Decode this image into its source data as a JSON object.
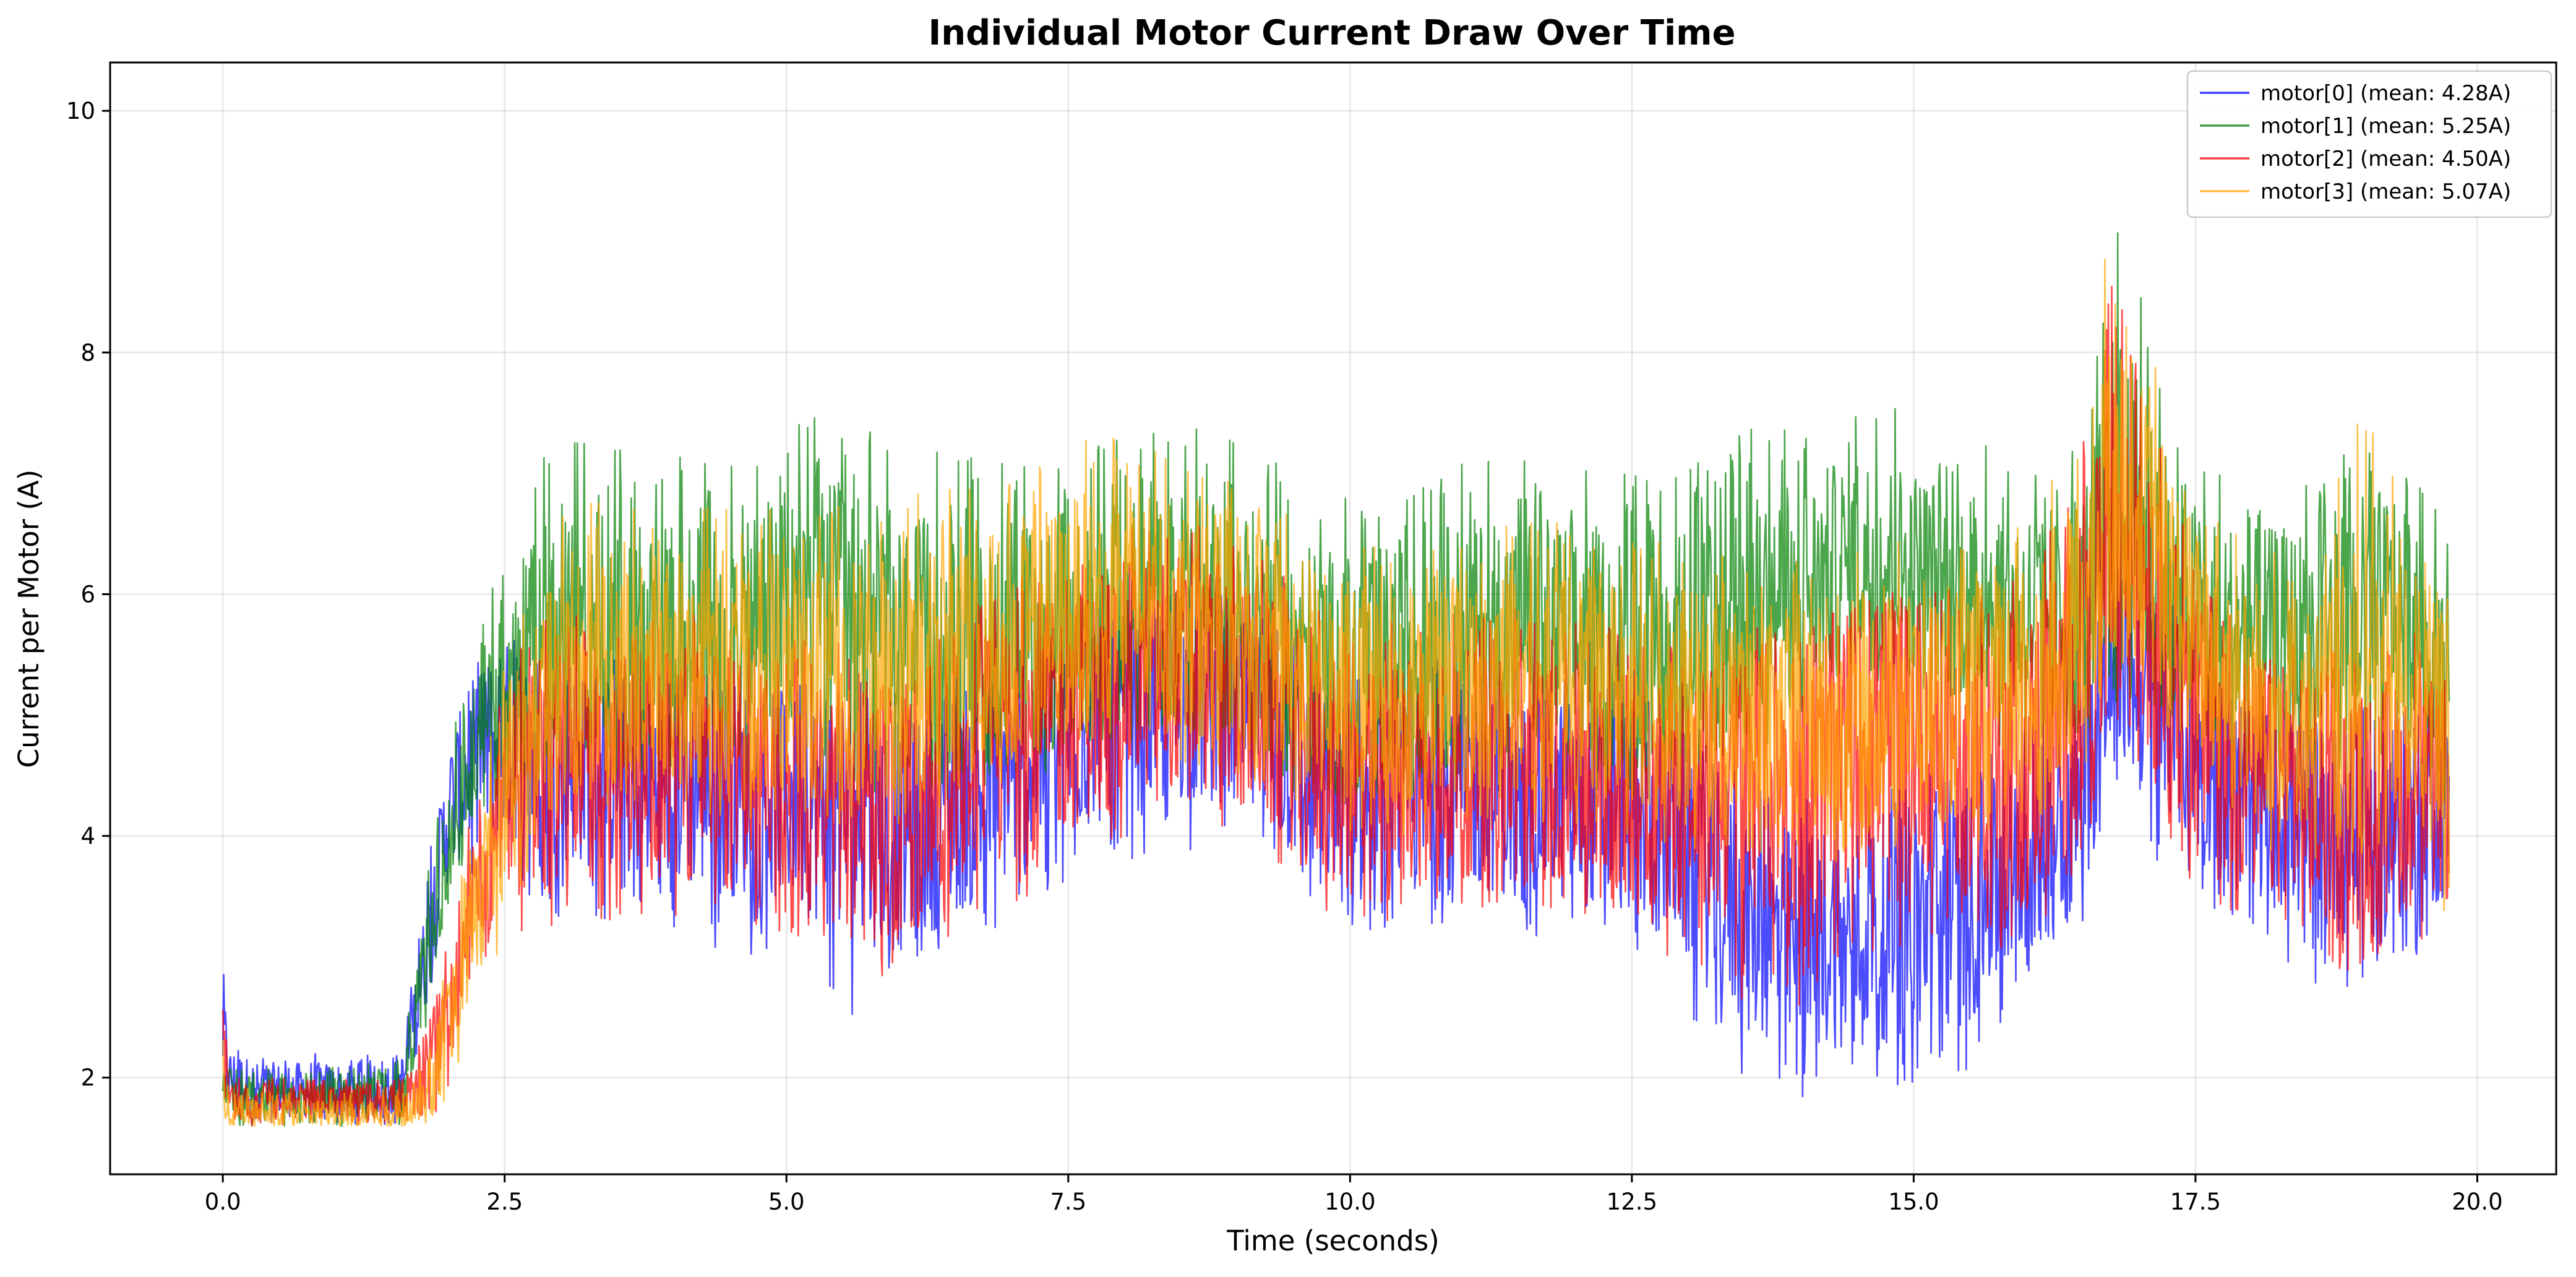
{
  "chart_data": {
    "type": "line",
    "title": "Individual Motor Current Draw Over Time",
    "xlabel": "Time (seconds)",
    "ylabel": "Current per Motor (A)",
    "xlim": [
      -1.0,
      20.7
    ],
    "ylim": [
      1.2,
      10.4
    ],
    "xticks": [
      0.0,
      2.5,
      5.0,
      7.5,
      10.0,
      12.5,
      15.0,
      17.5,
      20.0
    ],
    "xtick_labels": [
      "0.0",
      "2.5",
      "5.0",
      "7.5",
      "10.0",
      "12.5",
      "15.0",
      "17.5",
      "20.0"
    ],
    "yticks": [
      2,
      4,
      6,
      8,
      10
    ],
    "ytick_labels": [
      "2",
      "4",
      "6",
      "8",
      "10"
    ],
    "grid": true,
    "legend_position": "top-right",
    "x": [
      0.0,
      0.05,
      0.3,
      0.8,
      1.2,
      1.6,
      1.8,
      2.0,
      2.2,
      2.5,
      2.8,
      3.0,
      3.5,
      4.0,
      4.5,
      5.0,
      5.5,
      6.0,
      6.5,
      7.0,
      7.5,
      8.0,
      8.5,
      9.0,
      9.5,
      10.0,
      10.5,
      11.0,
      11.5,
      12.0,
      12.5,
      13.0,
      13.5,
      14.0,
      14.5,
      15.0,
      15.5,
      16.0,
      16.5,
      16.8,
      17.0,
      17.5,
      18.0,
      18.5,
      19.0,
      19.5,
      19.75
    ],
    "series": [
      {
        "name": "motor[0] (mean: 4.28A)",
        "color": "#0000ff",
        "values": [
          2.4,
          2.0,
          1.9,
          1.9,
          1.9,
          1.95,
          3.0,
          4.2,
          4.6,
          4.8,
          4.7,
          4.6,
          4.5,
          4.4,
          4.4,
          4.3,
          4.2,
          4.0,
          4.2,
          4.5,
          4.8,
          5.0,
          5.1,
          5.0,
          4.6,
          4.2,
          4.3,
          4.4,
          4.3,
          4.3,
          4.2,
          3.9,
          3.3,
          3.1,
          3.2,
          3.3,
          3.4,
          3.8,
          4.3,
          5.5,
          5.2,
          4.7,
          4.3,
          4.1,
          4.0,
          4.2,
          4.2
        ],
        "low": [
          1.6,
          1.6,
          1.6,
          1.6,
          1.6,
          1.6,
          2.4,
          3.6,
          3.6,
          3.5,
          3.4,
          3.3,
          3.3,
          3.2,
          3.0,
          3.0,
          2.5,
          2.6,
          3.0,
          3.3,
          3.6,
          3.8,
          3.9,
          3.8,
          3.5,
          3.1,
          3.2,
          3.3,
          3.2,
          3.1,
          3.0,
          2.4,
          2.0,
          1.8,
          2.0,
          1.9,
          2.0,
          2.7,
          3.3,
          4.4,
          3.9,
          3.5,
          3.2,
          2.8,
          2.6,
          3.0,
          3.3
        ],
        "high": [
          3.1,
          2.3,
          2.2,
          2.2,
          2.2,
          2.3,
          3.6,
          5.1,
          5.4,
          5.7,
          5.6,
          5.5,
          5.5,
          5.4,
          5.4,
          5.3,
          5.3,
          5.2,
          5.3,
          5.6,
          5.8,
          6.0,
          6.1,
          6.0,
          5.7,
          5.3,
          5.4,
          5.5,
          5.4,
          5.4,
          5.3,
          5.0,
          4.5,
          4.3,
          4.4,
          4.5,
          4.6,
          4.9,
          5.6,
          6.4,
          6.2,
          5.7,
          5.3,
          5.1,
          5.1,
          5.3,
          5.2
        ]
      },
      {
        "name": "motor[1] (mean: 5.25A)",
        "color": "#008000",
        "values": [
          2.2,
          1.9,
          1.85,
          1.85,
          1.85,
          1.9,
          3.0,
          4.0,
          4.6,
          5.2,
          5.6,
          5.7,
          5.6,
          5.6,
          5.6,
          5.9,
          5.8,
          5.5,
          5.5,
          5.6,
          5.7,
          5.8,
          5.9,
          5.8,
          5.5,
          5.3,
          5.5,
          5.6,
          5.7,
          5.6,
          5.5,
          5.6,
          5.8,
          6.0,
          6.3,
          6.2,
          6.0,
          5.8,
          5.9,
          6.6,
          6.5,
          5.8,
          5.6,
          5.6,
          5.8,
          6.0,
          5.0
        ],
        "low": [
          1.6,
          1.6,
          1.6,
          1.6,
          1.6,
          1.6,
          2.4,
          3.4,
          3.9,
          4.2,
          4.4,
          4.5,
          4.4,
          4.4,
          4.3,
          4.6,
          4.5,
          4.2,
          4.3,
          4.4,
          4.6,
          4.7,
          4.8,
          4.7,
          4.3,
          4.1,
          4.3,
          4.4,
          4.5,
          4.4,
          4.3,
          4.4,
          4.6,
          5.0,
          5.3,
          5.2,
          4.9,
          4.6,
          4.7,
          5.4,
          5.2,
          4.6,
          4.4,
          4.3,
          4.5,
          4.7,
          4.1
        ],
        "high": [
          2.7,
          2.1,
          2.1,
          2.1,
          2.1,
          2.2,
          3.6,
          4.8,
          5.4,
          6.5,
          7.2,
          7.4,
          7.2,
          7.2,
          7.1,
          7.6,
          7.5,
          7.3,
          7.2,
          7.2,
          7.2,
          7.3,
          7.4,
          7.3,
          7.0,
          6.8,
          7.0,
          7.1,
          7.2,
          7.1,
          7.0,
          7.1,
          7.4,
          7.5,
          7.7,
          7.5,
          7.3,
          7.1,
          7.4,
          10.0,
          8.6,
          7.2,
          6.9,
          6.9,
          7.3,
          7.2,
          6.4
        ]
      },
      {
        "name": "motor[2] (mean: 4.50A)",
        "color": "#ff0000",
        "values": [
          2.2,
          1.85,
          1.8,
          1.8,
          1.8,
          1.8,
          2.0,
          2.6,
          3.4,
          4.2,
          4.5,
          4.6,
          4.6,
          4.6,
          4.5,
          4.5,
          4.3,
          4.2,
          4.5,
          4.8,
          5.0,
          5.3,
          5.4,
          5.2,
          4.8,
          4.4,
          4.5,
          4.6,
          4.6,
          4.5,
          4.4,
          4.3,
          4.4,
          4.5,
          4.8,
          4.9,
          4.7,
          4.6,
          5.3,
          6.4,
          6.0,
          5.0,
          4.5,
          4.3,
          4.2,
          4.4,
          4.3
        ],
        "low": [
          1.6,
          1.6,
          1.6,
          1.6,
          1.6,
          1.6,
          1.6,
          1.8,
          2.6,
          3.1,
          3.2,
          3.3,
          3.3,
          3.3,
          3.2,
          3.2,
          3.0,
          2.6,
          3.1,
          3.4,
          3.7,
          4.0,
          4.1,
          3.9,
          3.6,
          3.2,
          3.3,
          3.4,
          3.4,
          3.3,
          3.2,
          2.9,
          2.6,
          2.6,
          3.0,
          3.1,
          3.0,
          3.0,
          3.8,
          5.0,
          4.5,
          3.5,
          3.1,
          2.6,
          2.9,
          3.1,
          3.2
        ],
        "high": [
          2.7,
          2.1,
          2.0,
          2.0,
          2.0,
          2.0,
          2.5,
          3.3,
          4.3,
          5.4,
          5.8,
          5.9,
          5.9,
          5.9,
          5.8,
          5.8,
          5.6,
          5.5,
          5.8,
          6.1,
          6.3,
          6.6,
          6.7,
          6.5,
          6.1,
          5.7,
          5.8,
          5.9,
          5.9,
          5.8,
          5.7,
          5.6,
          5.7,
          5.8,
          6.1,
          6.2,
          6.0,
          6.4,
          7.3,
          8.8,
          7.8,
          6.3,
          5.8,
          5.6,
          5.5,
          5.7,
          5.5
        ]
      },
      {
        "name": "motor[3] (mean: 5.07A)",
        "color": "#ffa500",
        "values": [
          2.0,
          1.75,
          1.7,
          1.7,
          1.7,
          1.7,
          1.9,
          2.4,
          3.3,
          4.3,
          5.0,
          5.3,
          5.4,
          5.4,
          5.3,
          5.3,
          5.3,
          5.3,
          5.4,
          5.6,
          5.8,
          5.9,
          5.8,
          5.7,
          5.4,
          5.1,
          5.2,
          5.3,
          5.3,
          5.3,
          5.2,
          5.1,
          5.0,
          4.9,
          5.0,
          5.1,
          5.1,
          5.2,
          5.8,
          7.0,
          6.6,
          5.6,
          5.1,
          5.0,
          5.0,
          5.2,
          5.0
        ],
        "low": [
          1.6,
          1.6,
          1.6,
          1.6,
          1.6,
          1.6,
          1.6,
          1.7,
          2.4,
          3.2,
          3.8,
          4.1,
          4.2,
          4.2,
          4.1,
          4.1,
          4.1,
          4.1,
          4.2,
          4.4,
          4.6,
          4.7,
          4.6,
          4.5,
          4.2,
          3.9,
          4.0,
          4.1,
          4.1,
          4.1,
          4.0,
          3.9,
          3.8,
          3.7,
          3.8,
          3.9,
          3.9,
          4.0,
          4.5,
          5.6,
          5.2,
          4.3,
          3.9,
          3.8,
          3.8,
          4.0,
          3.2
        ],
        "high": [
          2.4,
          2.0,
          1.9,
          1.9,
          1.9,
          1.9,
          2.3,
          3.0,
          4.2,
          5.4,
          6.3,
          6.7,
          6.8,
          6.8,
          6.7,
          6.7,
          6.8,
          6.8,
          6.9,
          7.1,
          7.3,
          7.3,
          7.1,
          7.0,
          6.7,
          6.4,
          6.5,
          6.6,
          6.6,
          6.6,
          6.5,
          6.4,
          6.3,
          6.3,
          6.4,
          6.5,
          6.5,
          6.7,
          7.4,
          9.8,
          8.4,
          6.9,
          6.4,
          6.3,
          7.6,
          6.5,
          5.8
        ]
      }
    ]
  }
}
